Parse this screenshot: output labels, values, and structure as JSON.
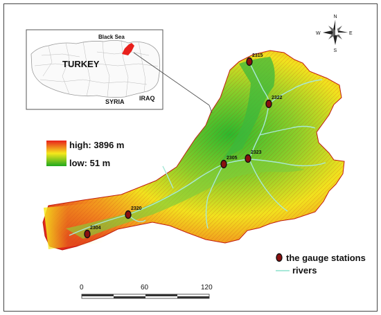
{
  "inset": {
    "sea_label": "Black Sea",
    "country_label": "TURKEY",
    "neighbor_labels": [
      "SYRIA",
      "IRAQ"
    ]
  },
  "compass": {
    "north": "N",
    "south": "S",
    "east": "E",
    "west": "W"
  },
  "elevation_legend": {
    "high_label": "high: 3896 m",
    "low_label": "low: 51 m",
    "high_color": "#e8201c",
    "mid_color": "#f6e81c",
    "low_color": "#1ea81e"
  },
  "stations": [
    {
      "id": "2315"
    },
    {
      "id": "2322"
    },
    {
      "id": "2305"
    },
    {
      "id": "2323"
    },
    {
      "id": "2320"
    },
    {
      "id": "2304"
    }
  ],
  "legend": {
    "stations_label": "the gauge stations",
    "rivers_label": "rivers",
    "river_color": "#a8e8d8",
    "station_color": "#8a1010"
  },
  "scale_bar": {
    "ticks": [
      "0",
      "60",
      "120"
    ]
  }
}
